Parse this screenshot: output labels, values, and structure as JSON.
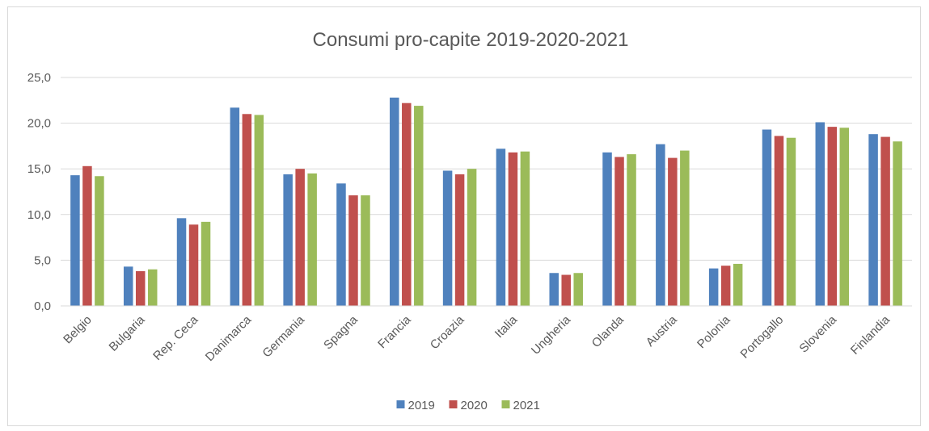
{
  "chart_data": {
    "type": "bar",
    "title": "Consumi pro-capite 2019-2020-2021",
    "xlabel": "",
    "ylabel": "",
    "ylim": [
      0,
      25
    ],
    "yticks": [
      "0,0",
      "5,0",
      "10,0",
      "15,0",
      "20,0",
      "25,0"
    ],
    "grid": true,
    "legend_position": "bottom",
    "categories": [
      "Belgio",
      "Bulgaria",
      "Rep. Ceca",
      "Danimarca",
      "Germania",
      "Spagna",
      "Francia",
      "Croazia",
      "Italia",
      "Ungheria",
      "Olanda",
      "Austria",
      "Polonia",
      "Portogallo",
      "Slovenia",
      "Finlandia"
    ],
    "series": [
      {
        "name": "2019",
        "color": "#4f81bd",
        "values": [
          14.3,
          4.3,
          9.6,
          21.7,
          14.4,
          13.4,
          22.8,
          14.8,
          17.2,
          3.6,
          16.8,
          17.7,
          4.1,
          19.3,
          20.1,
          18.8
        ]
      },
      {
        "name": "2020",
        "color": "#c0504d",
        "values": [
          15.3,
          3.8,
          8.9,
          21.0,
          15.0,
          12.1,
          22.2,
          14.4,
          16.8,
          3.4,
          16.3,
          16.2,
          4.4,
          18.6,
          19.6,
          18.5
        ]
      },
      {
        "name": "2021",
        "color": "#9bbb59",
        "values": [
          14.2,
          4.0,
          9.2,
          20.9,
          14.5,
          12.1,
          21.9,
          15.0,
          16.9,
          3.6,
          16.6,
          17.0,
          4.6,
          18.4,
          19.5,
          18.0
        ]
      }
    ]
  }
}
